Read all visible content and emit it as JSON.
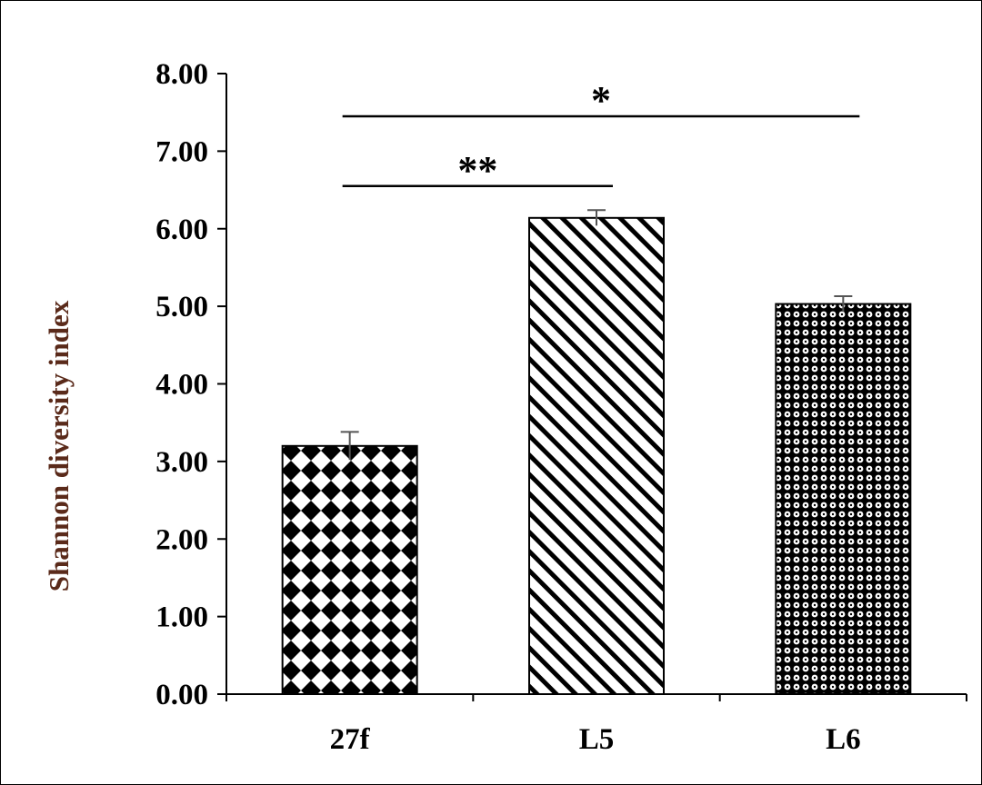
{
  "chart_data": {
    "type": "bar",
    "title": "",
    "xlabel": "",
    "ylabel": "Shannon diversity index",
    "ylim": [
      0,
      8
    ],
    "yticks": [
      "0.00",
      "1.00",
      "2.00",
      "3.00",
      "4.00",
      "5.00",
      "6.00",
      "7.00",
      "8.00"
    ],
    "categories": [
      "27f",
      "L5",
      "L6"
    ],
    "values": [
      3.2,
      6.14,
      5.03
    ],
    "errors": [
      0.18,
      0.1,
      0.1
    ],
    "patterns": [
      "diamond-checker",
      "diagonal-stripes",
      "dot-grid"
    ],
    "grid": false,
    "legend": "none",
    "significance": [
      {
        "from": "27f",
        "to": "L5",
        "label": "**",
        "level": 6.55
      },
      {
        "from": "27f",
        "to": "L6",
        "label": "*",
        "level": 7.45
      }
    ]
  },
  "colors": {
    "bar_edge": "#000000",
    "ylabel": "#5a2a1a",
    "error_bar": "#555555"
  }
}
